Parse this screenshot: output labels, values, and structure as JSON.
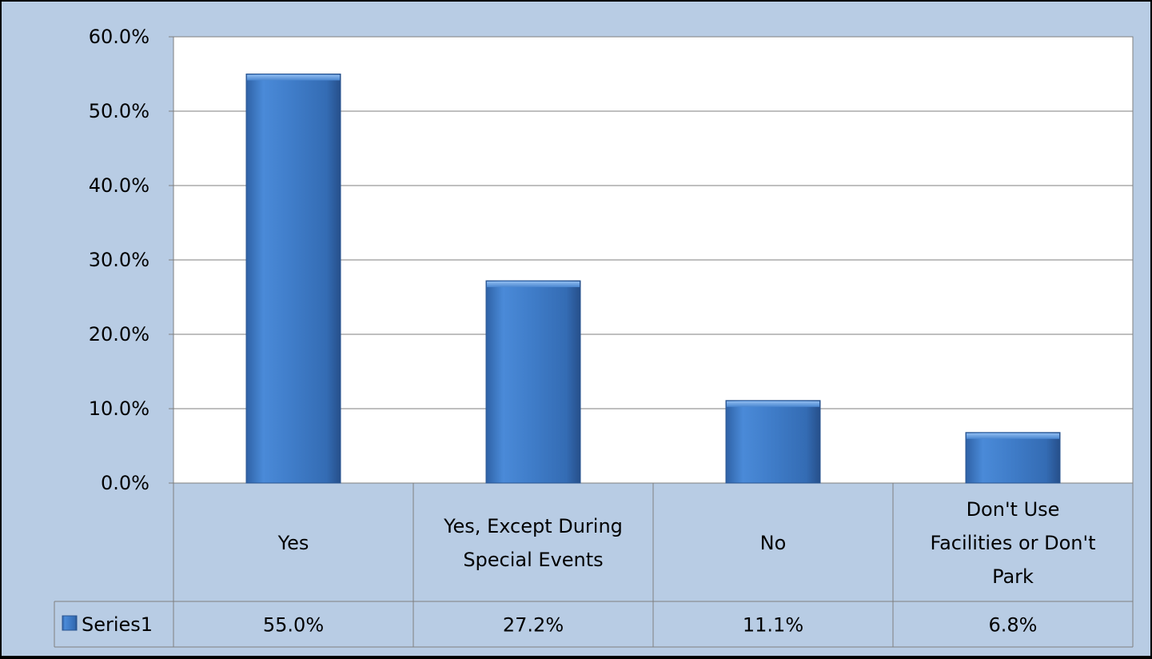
{
  "chart_data": {
    "type": "bar",
    "categories": [
      "Yes",
      "Yes, Except During Special Events",
      "No",
      "Don't Use Facilities or Don't Park"
    ],
    "category_lines": [
      [
        "Yes"
      ],
      [
        "Yes, Except During",
        "Special Events"
      ],
      [
        "No"
      ],
      [
        "Don't Use",
        "Facilities or Don't",
        "Park"
      ]
    ],
    "series": [
      {
        "name": "Series1",
        "values": [
          55.0,
          27.2,
          11.1,
          6.8
        ],
        "value_labels": [
          "55.0%",
          "27.2%",
          "11.1%",
          "6.8%"
        ],
        "color": "#4f81bd"
      }
    ],
    "ylim": [
      0,
      60
    ],
    "yticks": [
      0,
      10,
      20,
      30,
      40,
      50,
      60
    ],
    "ytick_labels": [
      "0.0%",
      "10.0%",
      "20.0%",
      "30.0%",
      "40.0%",
      "50.0%",
      "60.0%"
    ],
    "grid": true,
    "data_table": true,
    "legend": "data-table-left"
  },
  "colors": {
    "frame_background": "#b8cce4",
    "plot_background": "#ffffff",
    "bar_light": "#5b9be0",
    "bar_mid": "#3f7cc8",
    "bar_dark": "#2a5a9a",
    "gridline": "#7f7f7f",
    "table_line": "#7f7f7f"
  }
}
